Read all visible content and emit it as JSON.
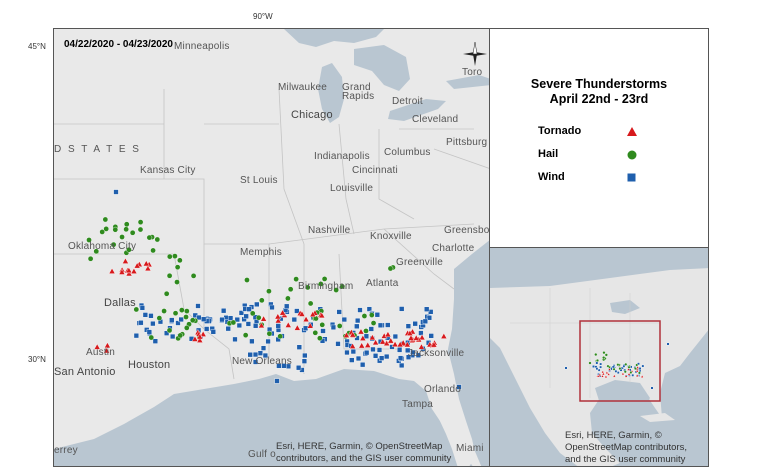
{
  "grid_labels": {
    "top_lon": "90°W",
    "lat_45": "45°N",
    "lat_30": "30°N"
  },
  "map": {
    "date_range": "04/22/2020 - 04/23/2020",
    "country_label": "D   S T A T E S",
    "cities": [
      {
        "name": "Minneapolis",
        "size": "small"
      },
      {
        "name": "Milwaukee",
        "size": "small"
      },
      {
        "name": "Grand",
        "size": "small"
      },
      {
        "name": "Rapids",
        "size": "small"
      },
      {
        "name": "Detroit",
        "size": "small"
      },
      {
        "name": "Toro",
        "size": "small"
      },
      {
        "name": "Chicago",
        "size": "big"
      },
      {
        "name": "Cleveland",
        "size": "small"
      },
      {
        "name": "Pittsburg",
        "size": "small"
      },
      {
        "name": "Indianapolis",
        "size": "small"
      },
      {
        "name": "Columbus",
        "size": "small"
      },
      {
        "name": "Cincinnati",
        "size": "small"
      },
      {
        "name": "Kansas City",
        "size": "small"
      },
      {
        "name": "St Louis",
        "size": "small"
      },
      {
        "name": "Louisville",
        "size": "small"
      },
      {
        "name": "Nashville",
        "size": "small"
      },
      {
        "name": "Knoxville",
        "size": "small"
      },
      {
        "name": "Greensbo",
        "size": "small"
      },
      {
        "name": "Oklahoma City",
        "size": "small"
      },
      {
        "name": "Memphis",
        "size": "small"
      },
      {
        "name": "Charlotte",
        "size": "small"
      },
      {
        "name": "Greenville",
        "size": "small"
      },
      {
        "name": "Birmingham",
        "size": "small"
      },
      {
        "name": "Atlanta",
        "size": "small"
      },
      {
        "name": "Dallas",
        "size": "big"
      },
      {
        "name": "Austin",
        "size": "small"
      },
      {
        "name": "Houston",
        "size": "big"
      },
      {
        "name": "New Orleans",
        "size": "small"
      },
      {
        "name": "Jacksonville",
        "size": "small"
      },
      {
        "name": "San Antonio",
        "size": "big"
      },
      {
        "name": "Orlando",
        "size": "small"
      },
      {
        "name": "Tampa",
        "size": "small"
      },
      {
        "name": "Miami",
        "size": "small"
      },
      {
        "name": "errey",
        "size": "small"
      },
      {
        "name": "Gulf o",
        "size": "small"
      }
    ],
    "attribution_line1": "Esri, HERE, Garmin, © OpenStreetMap",
    "attribution_line2": "contributors, and the GIS user community"
  },
  "legend": {
    "title_line1": "Severe Thunderstorms",
    "title_line2": "April 22nd - 23rd",
    "items": [
      {
        "label": "Tornado",
        "shape": "triangle",
        "color": "#d7191c"
      },
      {
        "label": "Hail",
        "shape": "circle",
        "color": "#2f8a1e"
      },
      {
        "label": "Wind",
        "shape": "square",
        "color": "#1f5fad"
      }
    ]
  },
  "inset": {
    "attribution_line1": "Esri, HERE, Garmin, ©",
    "attribution_line2": "OpenStreetMap contributors,",
    "attribution_line3": "and the GIS user community",
    "extent_color": "#b0303a"
  },
  "colors": {
    "land": "#e9e9e9",
    "water": "#b9c6d1",
    "tornado": "#d7191c",
    "hail": "#2f8a1e",
    "wind": "#1f5fad"
  }
}
